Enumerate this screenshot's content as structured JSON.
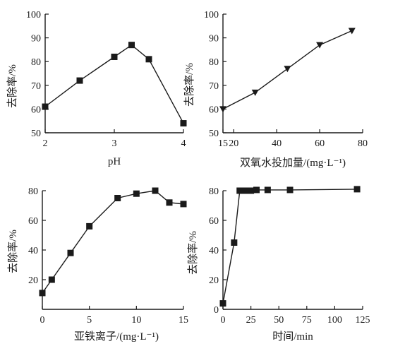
{
  "chart_data": [
    {
      "type": "line",
      "title": "",
      "xlabel": "pH",
      "ylabel": "去除率/%",
      "xlim": [
        2,
        4
      ],
      "ylim": [
        50,
        100
      ],
      "xticks": [
        2,
        3,
        4
      ],
      "yticks": [
        50,
        60,
        70,
        80,
        90,
        100
      ],
      "marker": "square",
      "grid": false,
      "x": [
        2,
        2.5,
        3,
        3.25,
        3.5,
        4
      ],
      "y": [
        61,
        72,
        82,
        87,
        81,
        54
      ]
    },
    {
      "type": "line",
      "title": "",
      "xlabel": "双氧水投加量/(mg·L⁻¹)",
      "ylabel": "去除率/%",
      "xlim": [
        15,
        80
      ],
      "ylim": [
        50,
        100
      ],
      "xticks": [
        15,
        20,
        40,
        60,
        80
      ],
      "yticks": [
        50,
        60,
        70,
        80,
        90,
        100
      ],
      "marker": "triangle-down",
      "grid": false,
      "x": [
        15,
        30,
        45,
        60,
        75
      ],
      "y": [
        60,
        67,
        77,
        87,
        93
      ]
    },
    {
      "type": "line",
      "title": "",
      "xlabel": "亚铁离子/(mg·L⁻¹)",
      "ylabel": "去除率/%",
      "xlim": [
        0,
        15
      ],
      "ylim": [
        0,
        80
      ],
      "xticks": [
        0,
        5,
        10,
        15
      ],
      "yticks": [
        20,
        40,
        60,
        80
      ],
      "marker": "square",
      "grid": false,
      "x": [
        0,
        1,
        3,
        5,
        8,
        10,
        12,
        13.5,
        15
      ],
      "y": [
        11,
        20,
        38,
        56,
        75,
        78,
        80,
        72,
        71
      ]
    },
    {
      "type": "line",
      "title": "",
      "xlabel": "时间/min",
      "ylabel": "去除率/%",
      "xlim": [
        0,
        125
      ],
      "ylim": [
        0,
        80
      ],
      "xticks": [
        0,
        25,
        50,
        75,
        100,
        125
      ],
      "yticks": [
        0,
        20,
        40,
        60,
        80
      ],
      "marker": "square",
      "grid": false,
      "x": [
        0,
        10,
        15,
        20,
        25,
        30,
        40,
        60,
        120
      ],
      "y": [
        4,
        45,
        80,
        80,
        80,
        80.5,
        80.5,
        80.5,
        81
      ]
    }
  ]
}
